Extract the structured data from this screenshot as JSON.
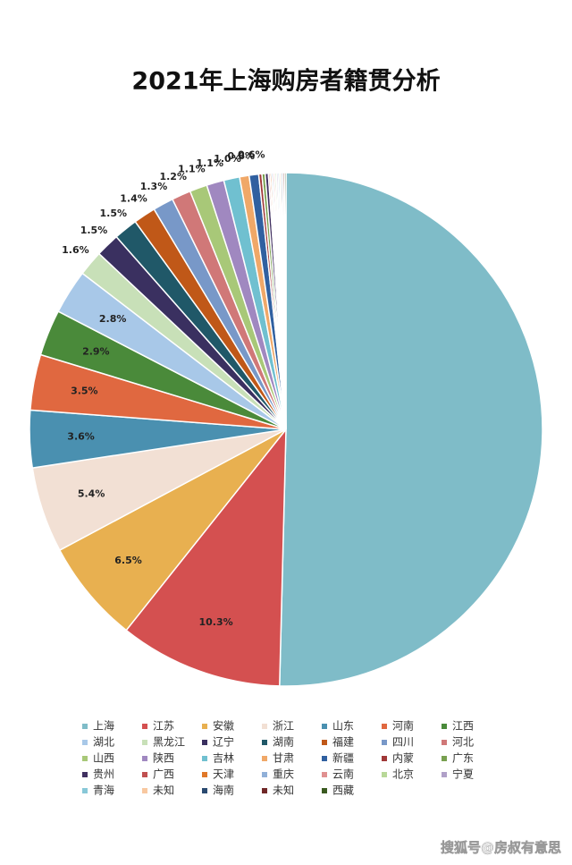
{
  "chart_data": {
    "type": "pie",
    "title": "2021年上海购房者籍贯分析",
    "categories": [
      "上海",
      "江苏",
      "安徽",
      "浙江",
      "山东",
      "河南",
      "江西",
      "湖北",
      "黑龙江",
      "辽宁",
      "湖南",
      "福建",
      "四川",
      "河北",
      "山西",
      "陕西",
      "吉林",
      "甘肃",
      "新疆",
      "内蒙",
      "广东",
      "贵州",
      "广西",
      "天津",
      "重庆",
      "云南",
      "北京",
      "宁夏",
      "青海",
      "未知",
      "海南",
      "未知",
      "西藏"
    ],
    "values": [
      50.4,
      10.3,
      6.5,
      5.4,
      3.6,
      3.5,
      2.9,
      2.8,
      1.6,
      1.5,
      1.5,
      1.4,
      1.3,
      1.2,
      1.1,
      1.1,
      1.0,
      0.6,
      0.6,
      0.2,
      0.2,
      0.2,
      0.1,
      0.1,
      0.1,
      0.1,
      0.1,
      0.1,
      0.1,
      0.1,
      0.1,
      0.1,
      0.1
    ],
    "value_labels": [
      null,
      "10.3%",
      "6.5%",
      "5.4%",
      "3.6%",
      "3.5%",
      "2.9%",
      "2.8%",
      "1.6%",
      "1.5%",
      "1.5%",
      "1.4%",
      "1.3%",
      "1.2%",
      "1.1%",
      "1.1%",
      "1.0%",
      "0.6%",
      "0.6%",
      null,
      null,
      null,
      null,
      null,
      null,
      null,
      null,
      null,
      null,
      null,
      null,
      null,
      null
    ],
    "colors": [
      "#7fbcc8",
      "#d45050",
      "#e8b050",
      "#f2e0d4",
      "#4a90b0",
      "#e06840",
      "#4a8a3a",
      "#a8c8e8",
      "#c8e0b8",
      "#3a3060",
      "#205868",
      "#c05818",
      "#7898c8",
      "#d07878",
      "#a8c878",
      "#a088c0",
      "#70c0d0",
      "#f0a868",
      "#3060a0",
      "#a03838",
      "#78a050",
      "#403060",
      "#c05050",
      "#e07828",
      "#90b0d8",
      "#e09090",
      "#b8d898",
      "#b0a0c8",
      "#88c8d8",
      "#f8c8a0",
      "#2a4a70",
      "#702828",
      "#3a5a20"
    ],
    "watermark": "搜狐号@房叔有意思"
  }
}
